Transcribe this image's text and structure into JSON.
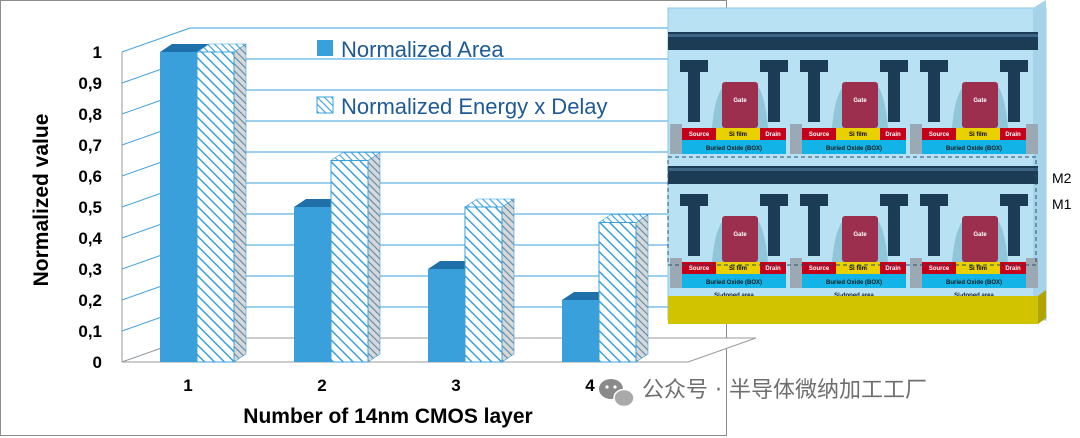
{
  "chart_data": {
    "type": "bar",
    "categories": [
      "1",
      "2",
      "3",
      "4"
    ],
    "series": [
      {
        "name": "Normalized Area",
        "values": [
          1.0,
          0.5,
          0.3,
          0.2
        ]
      },
      {
        "name": "Normalized Energy x Delay",
        "values": [
          1.0,
          0.65,
          0.5,
          0.45
        ]
      }
    ],
    "xlabel": "Number of 14nm CMOS layer",
    "ylabel": "Normalized value",
    "ylim": [
      0,
      1
    ],
    "yticks": [
      "0",
      "0,1",
      "0,2",
      "0,3",
      "0,4",
      "0,5",
      "0,6",
      "0,7",
      "0,8",
      "0,9",
      "1"
    ],
    "legend_position": "top-center",
    "grid": false,
    "colors": {
      "area": "#3aa0dc",
      "area_top": "#1f6fa8",
      "hatch": "#3aa0dc",
      "grid_line": "#3aa0dc"
    }
  },
  "device": {
    "labels": {
      "gate": "Gate",
      "source": "Source",
      "si_film": "Si film",
      "drain": "Drain",
      "box": "Buried Oxide (BOX)",
      "doped": "Si-doped area"
    },
    "layer_labels": [
      "M2",
      "M1"
    ]
  },
  "watermark": {
    "text": "公众号 · 半导体微纳加工工厂"
  }
}
